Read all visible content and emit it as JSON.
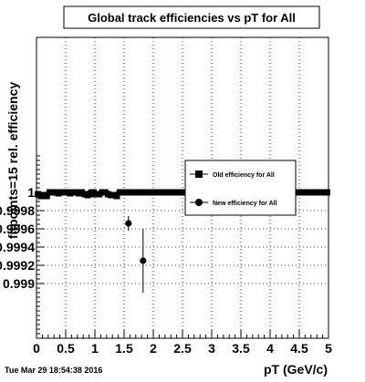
{
  "chart_data": {
    "type": "scatter",
    "title": "Global track efficiencies vs pT for All",
    "xlabel": "pT (GeV/c)",
    "ylabel": "fitpoints=15 rel. efficiency",
    "xlim": [
      0,
      5
    ],
    "ylim": [
      0.9984,
      1.0017
    ],
    "x_ticks": [
      "0",
      "0.5",
      "1",
      "1.5",
      "2",
      "2.5",
      "3",
      "3.5",
      "4",
      "4.5",
      "5"
    ],
    "y_ticks": [
      {
        "value": 0.999,
        "label": "0.999"
      },
      {
        "value": 0.9992,
        "label": "0.9992"
      },
      {
        "value": 0.9994,
        "label": "0.9994"
      },
      {
        "value": 0.9996,
        "label": "0.9996"
      },
      {
        "value": 0.9998,
        "label": "0.9998"
      },
      {
        "value": 1.0,
        "label": "1"
      }
    ],
    "grid": true,
    "legend_position": "right",
    "timestamp": "Tue Mar 29 18:54:38 2016",
    "series": [
      {
        "name": "Old efficiency  for All",
        "marker": "square",
        "x": [
          0.025,
          0.075,
          0.125,
          0.175,
          0.225,
          0.275,
          0.325,
          0.375,
          0.425,
          0.475,
          0.525,
          0.575,
          0.625,
          0.675,
          0.725,
          0.775,
          0.825,
          0.875,
          0.925,
          0.975,
          1.025,
          1.075,
          1.125,
          1.175,
          1.225,
          1.275,
          1.325,
          1.375,
          1.425,
          1.475,
          1.525,
          1.575,
          1.625,
          1.675,
          1.725,
          1.775,
          1.825,
          1.875,
          1.925,
          1.975,
          2.025,
          2.075,
          2.125,
          2.175,
          2.225,
          2.275,
          2.325,
          2.375,
          2.425,
          2.475,
          2.525,
          2.575,
          2.625,
          2.675,
          2.725,
          2.775,
          2.825,
          2.875,
          2.925,
          2.975,
          3.025,
          3.075,
          3.125,
          3.175,
          3.225,
          3.275,
          3.325,
          3.375,
          3.425,
          3.475,
          3.525,
          3.575,
          3.625,
          3.675,
          3.725,
          3.775,
          3.825,
          3.875,
          3.925,
          3.975,
          4.025,
          4.075,
          4.125,
          4.175,
          4.225,
          4.275,
          4.325,
          4.375,
          4.425,
          4.475,
          4.525,
          4.575,
          4.625,
          4.675,
          4.725,
          4.775,
          4.825,
          4.875,
          4.925,
          4.975
        ],
        "y": [
          0.99998,
          0.99996,
          0.99997,
          0.99996,
          1.0,
          1.0,
          1.0,
          0.99999,
          1.0,
          1.0,
          1.0,
          0.99999,
          1.0,
          1.0,
          0.99999,
          1.0,
          0.99998,
          0.99997,
          0.99998,
          1.0,
          0.99998,
          0.99998,
          1.0,
          1.0,
          0.99998,
          0.99997,
          0.99997,
          0.99996,
          1.0,
          1.0,
          1.0,
          1.0,
          1.0,
          1.0,
          1.0,
          1.0,
          1.0,
          1.0,
          1.0,
          1.0,
          1.0,
          1.0,
          1.0,
          1.0,
          1.0,
          1.0,
          1.0,
          1.0,
          1.0,
          1.0,
          1.0,
          1.0,
          1.0,
          1.0,
          1.0,
          1.0,
          1.0,
          1.0,
          1.0,
          1.0,
          1.0,
          1.0,
          1.0,
          1.0,
          1.0,
          1.0,
          1.0,
          1.0,
          1.0,
          1.0,
          1.0,
          1.0,
          1.0,
          1.0,
          1.0,
          1.0,
          1.0,
          1.0,
          1.0,
          1.0,
          1.0,
          1.0,
          1.0,
          1.0,
          1.0,
          1.0,
          1.0,
          1.0,
          1.0,
          1.0,
          1.0,
          1.0,
          1.0,
          1.0,
          1.0,
          1.0,
          1.0,
          1.0,
          1.0,
          1.0
        ],
        "err": [
          2e-05,
          3e-05,
          2e-05,
          2e-05,
          1e-05,
          1e-05,
          1e-05,
          2e-05,
          1e-05,
          1e-05,
          1e-05,
          2e-05,
          1e-05,
          1e-05,
          2e-05,
          1e-05,
          2e-05,
          2e-05,
          2e-05,
          1e-05,
          2e-05,
          2e-05,
          1e-05,
          1e-05,
          2e-05,
          3e-05,
          3e-05,
          3e-05,
          0,
          0,
          0,
          0,
          0,
          0,
          0,
          0,
          0,
          0,
          0,
          0,
          0,
          0,
          0,
          0,
          0,
          0,
          0,
          0,
          0,
          0,
          0,
          0,
          0,
          0,
          0,
          0,
          0,
          0,
          0,
          0,
          0,
          0,
          0,
          0,
          0,
          0,
          0,
          0,
          0,
          0,
          0,
          0,
          0,
          0,
          0,
          0,
          0,
          0,
          0,
          0,
          0,
          0,
          0,
          0,
          0,
          0,
          0,
          0,
          0,
          0,
          0,
          0,
          0,
          0,
          0,
          0,
          0,
          0,
          0,
          0
        ]
      },
      {
        "name": "New efficiency  for All",
        "marker": "circle",
        "x": [
          0.025,
          0.125,
          0.225,
          0.325,
          0.425,
          0.525,
          0.625,
          0.725,
          0.825,
          0.925,
          1.025,
          1.125,
          1.225,
          1.325,
          1.575,
          1.825,
          2.025,
          2.525,
          3.025,
          3.525,
          4.025,
          4.525,
          4.975
        ],
        "y": [
          0.99998,
          0.99997,
          1.0,
          1.0,
          1.0,
          1.0,
          1.0,
          0.99999,
          0.99998,
          1.0,
          0.99998,
          1.0,
          0.99998,
          0.99997,
          0.99966,
          0.99925,
          1.0,
          1.0,
          1.0,
          1.0,
          1.0,
          1.0,
          1.0
        ],
        "err": [
          2e-05,
          2e-05,
          1e-05,
          1e-05,
          1e-05,
          1e-05,
          1e-05,
          2e-05,
          2e-05,
          1e-05,
          2e-05,
          1e-05,
          2e-05,
          3e-05,
          8e-05,
          0.00035,
          0,
          0,
          0,
          0,
          0,
          0,
          0
        ]
      }
    ]
  }
}
